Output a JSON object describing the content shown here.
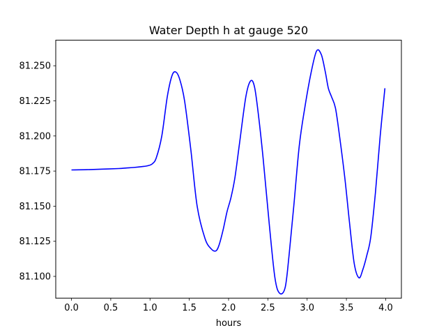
{
  "chart_data": {
    "type": "line",
    "title": "Water Depth h at gauge 520",
    "xlabel": "hours",
    "ylabel": "",
    "xlim": [
      -0.2,
      4.2
    ],
    "ylim": [
      81.0845,
      81.2682
    ],
    "xticks": [
      0.0,
      0.5,
      1.0,
      1.5,
      2.0,
      2.5,
      3.0,
      3.5,
      4.0
    ],
    "xtick_labels": [
      "0.0",
      "0.5",
      "1.0",
      "1.5",
      "2.0",
      "2.5",
      "3.0",
      "3.5",
      "4.0"
    ],
    "yticks": [
      81.1,
      81.125,
      81.15,
      81.175,
      81.2,
      81.225,
      81.25
    ],
    "ytick_labels": [
      "81.100",
      "81.125",
      "81.150",
      "81.175",
      "81.200",
      "81.225",
      "81.250"
    ],
    "grid": false,
    "series": [
      {
        "color": "#0000ff",
        "x": [
          0.0,
          0.2,
          0.4,
          0.6,
          0.7,
          0.8,
          0.9,
          0.97,
          1.03,
          1.08,
          1.15,
          1.22,
          1.28,
          1.33,
          1.38,
          1.44,
          1.52,
          1.6,
          1.7,
          1.78,
          1.84,
          1.88,
          1.93,
          1.98,
          2.03,
          2.08,
          2.14,
          2.22,
          2.28,
          2.33,
          2.38,
          2.44,
          2.52,
          2.59,
          2.65,
          2.72,
          2.77,
          2.83,
          2.9,
          2.97,
          3.05,
          3.12,
          3.18,
          3.23,
          3.27,
          3.31,
          3.36,
          3.41,
          3.48,
          3.54,
          3.6,
          3.66,
          3.71,
          3.76,
          3.81,
          3.87,
          3.93,
          3.99
        ],
        "y": [
          81.1758,
          81.176,
          81.1764,
          81.1768,
          81.1772,
          81.1776,
          81.1782,
          81.1788,
          81.1802,
          81.1845,
          81.2,
          81.228,
          81.243,
          81.2455,
          81.24,
          81.225,
          81.19,
          81.15,
          81.127,
          81.1195,
          81.1182,
          81.1225,
          81.133,
          81.146,
          81.156,
          81.17,
          81.195,
          81.228,
          81.2392,
          81.235,
          81.215,
          81.184,
          81.136,
          81.099,
          81.088,
          81.092,
          81.115,
          81.15,
          81.193,
          81.22,
          81.245,
          81.2605,
          81.258,
          81.246,
          81.234,
          81.228,
          81.22,
          81.201,
          81.17,
          81.138,
          81.109,
          81.099,
          81.105,
          81.115,
          81.128,
          81.16,
          81.2,
          81.234
        ]
      }
    ]
  }
}
